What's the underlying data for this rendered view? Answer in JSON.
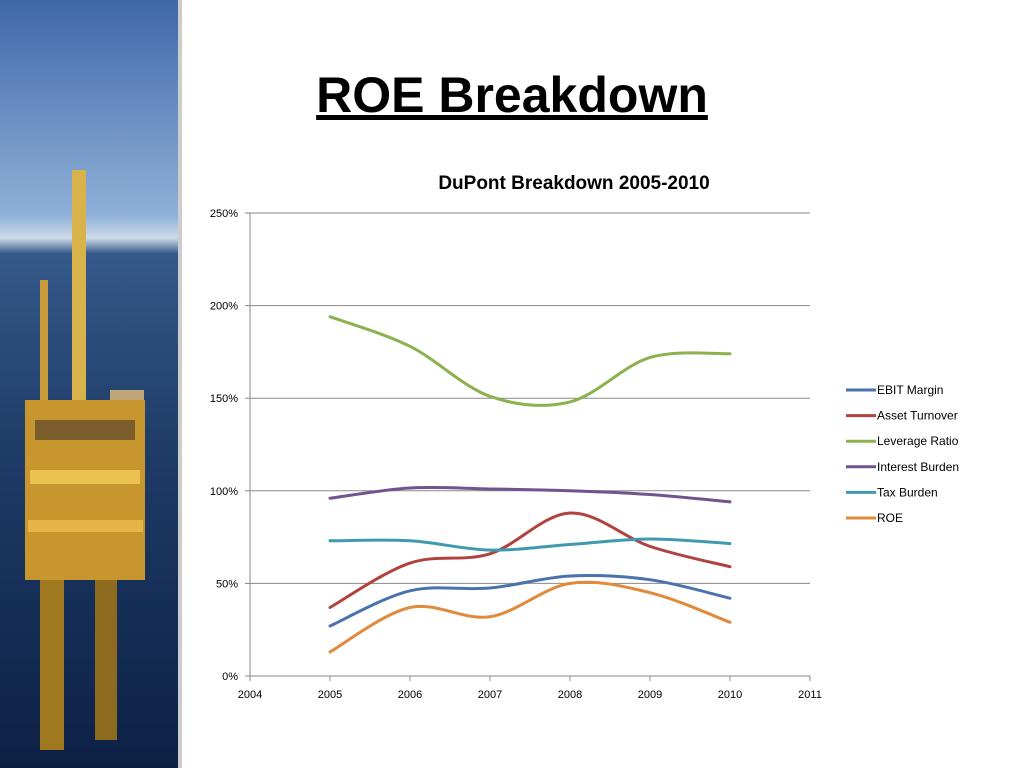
{
  "slide": {
    "title": "ROE Breakdown"
  },
  "chart_data": {
    "type": "line",
    "title": "DuPont Breakdown 2005-2010",
    "xlabel": "",
    "ylabel": "",
    "xlim": [
      2004,
      2011
    ],
    "ylim": [
      0,
      250
    ],
    "x_ticks": [
      "2004",
      "2005",
      "2006",
      "2007",
      "2008",
      "2009",
      "2010",
      "2011"
    ],
    "y_ticks": [
      "0%",
      "50%",
      "100%",
      "150%",
      "200%",
      "250%"
    ],
    "grid": true,
    "legend_position": "right",
    "x": [
      2005,
      2006,
      2007,
      2008,
      2009,
      2010
    ],
    "series": [
      {
        "name": "EBIT Margin",
        "color": "#4a72ab",
        "values": [
          27,
          46,
          47.5,
          54,
          52,
          42
        ]
      },
      {
        "name": "Asset Turnover",
        "color": "#b04340",
        "values": [
          37,
          61,
          66,
          88,
          70,
          59
        ]
      },
      {
        "name": "Leverage Ratio",
        "color": "#8cb14e",
        "values": [
          194,
          178,
          151,
          148,
          172,
          174
        ]
      },
      {
        "name": "Interest Burden",
        "color": "#71548f",
        "values": [
          96,
          101.5,
          101,
          100,
          98,
          94
        ]
      },
      {
        "name": "Tax Burden",
        "color": "#3f9aaf",
        "values": [
          73,
          73,
          68,
          71,
          74,
          71.5
        ]
      },
      {
        "name": "ROE",
        "color": "#e08a3c",
        "values": [
          13,
          37,
          32,
          50,
          45,
          29
        ]
      }
    ]
  }
}
